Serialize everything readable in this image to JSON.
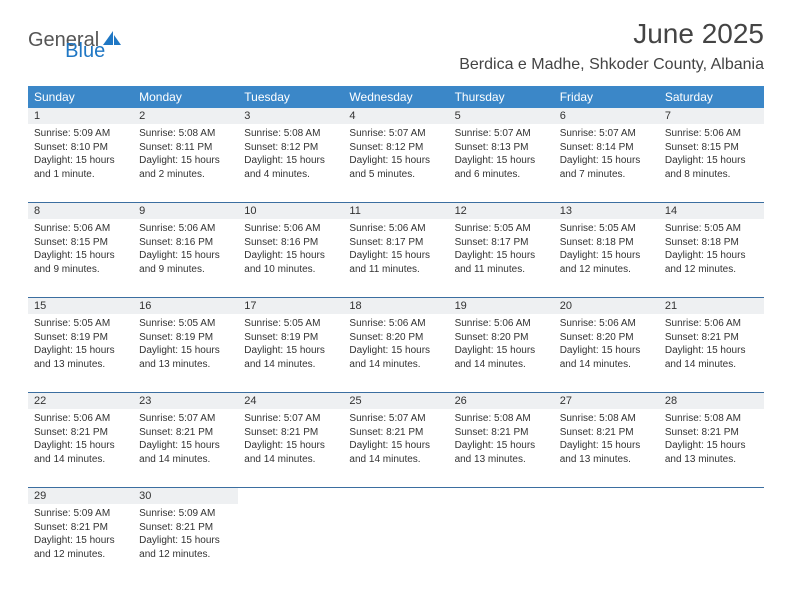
{
  "logo": {
    "general": "General",
    "blue": "Blue"
  },
  "title": "June 2025",
  "location": "Berdica e Madhe, Shkoder County, Albania",
  "colors": {
    "header_bg": "#3b87c8",
    "header_text": "#ffffff",
    "daynum_bg": "#eef0f2",
    "week_border": "#3b6ea0",
    "logo_blue": "#1f77c4",
    "text": "#333333"
  },
  "day_headers": [
    "Sunday",
    "Monday",
    "Tuesday",
    "Wednesday",
    "Thursday",
    "Friday",
    "Saturday"
  ],
  "weeks": [
    [
      {
        "n": "1",
        "sunrise": "Sunrise: 5:09 AM",
        "sunset": "Sunset: 8:10 PM",
        "dl1": "Daylight: 15 hours",
        "dl2": "and 1 minute."
      },
      {
        "n": "2",
        "sunrise": "Sunrise: 5:08 AM",
        "sunset": "Sunset: 8:11 PM",
        "dl1": "Daylight: 15 hours",
        "dl2": "and 2 minutes."
      },
      {
        "n": "3",
        "sunrise": "Sunrise: 5:08 AM",
        "sunset": "Sunset: 8:12 PM",
        "dl1": "Daylight: 15 hours",
        "dl2": "and 4 minutes."
      },
      {
        "n": "4",
        "sunrise": "Sunrise: 5:07 AM",
        "sunset": "Sunset: 8:12 PM",
        "dl1": "Daylight: 15 hours",
        "dl2": "and 5 minutes."
      },
      {
        "n": "5",
        "sunrise": "Sunrise: 5:07 AM",
        "sunset": "Sunset: 8:13 PM",
        "dl1": "Daylight: 15 hours",
        "dl2": "and 6 minutes."
      },
      {
        "n": "6",
        "sunrise": "Sunrise: 5:07 AM",
        "sunset": "Sunset: 8:14 PM",
        "dl1": "Daylight: 15 hours",
        "dl2": "and 7 minutes."
      },
      {
        "n": "7",
        "sunrise": "Sunrise: 5:06 AM",
        "sunset": "Sunset: 8:15 PM",
        "dl1": "Daylight: 15 hours",
        "dl2": "and 8 minutes."
      }
    ],
    [
      {
        "n": "8",
        "sunrise": "Sunrise: 5:06 AM",
        "sunset": "Sunset: 8:15 PM",
        "dl1": "Daylight: 15 hours",
        "dl2": "and 9 minutes."
      },
      {
        "n": "9",
        "sunrise": "Sunrise: 5:06 AM",
        "sunset": "Sunset: 8:16 PM",
        "dl1": "Daylight: 15 hours",
        "dl2": "and 9 minutes."
      },
      {
        "n": "10",
        "sunrise": "Sunrise: 5:06 AM",
        "sunset": "Sunset: 8:16 PM",
        "dl1": "Daylight: 15 hours",
        "dl2": "and 10 minutes."
      },
      {
        "n": "11",
        "sunrise": "Sunrise: 5:06 AM",
        "sunset": "Sunset: 8:17 PM",
        "dl1": "Daylight: 15 hours",
        "dl2": "and 11 minutes."
      },
      {
        "n": "12",
        "sunrise": "Sunrise: 5:05 AM",
        "sunset": "Sunset: 8:17 PM",
        "dl1": "Daylight: 15 hours",
        "dl2": "and 11 minutes."
      },
      {
        "n": "13",
        "sunrise": "Sunrise: 5:05 AM",
        "sunset": "Sunset: 8:18 PM",
        "dl1": "Daylight: 15 hours",
        "dl2": "and 12 minutes."
      },
      {
        "n": "14",
        "sunrise": "Sunrise: 5:05 AM",
        "sunset": "Sunset: 8:18 PM",
        "dl1": "Daylight: 15 hours",
        "dl2": "and 12 minutes."
      }
    ],
    [
      {
        "n": "15",
        "sunrise": "Sunrise: 5:05 AM",
        "sunset": "Sunset: 8:19 PM",
        "dl1": "Daylight: 15 hours",
        "dl2": "and 13 minutes."
      },
      {
        "n": "16",
        "sunrise": "Sunrise: 5:05 AM",
        "sunset": "Sunset: 8:19 PM",
        "dl1": "Daylight: 15 hours",
        "dl2": "and 13 minutes."
      },
      {
        "n": "17",
        "sunrise": "Sunrise: 5:05 AM",
        "sunset": "Sunset: 8:19 PM",
        "dl1": "Daylight: 15 hours",
        "dl2": "and 14 minutes."
      },
      {
        "n": "18",
        "sunrise": "Sunrise: 5:06 AM",
        "sunset": "Sunset: 8:20 PM",
        "dl1": "Daylight: 15 hours",
        "dl2": "and 14 minutes."
      },
      {
        "n": "19",
        "sunrise": "Sunrise: 5:06 AM",
        "sunset": "Sunset: 8:20 PM",
        "dl1": "Daylight: 15 hours",
        "dl2": "and 14 minutes."
      },
      {
        "n": "20",
        "sunrise": "Sunrise: 5:06 AM",
        "sunset": "Sunset: 8:20 PM",
        "dl1": "Daylight: 15 hours",
        "dl2": "and 14 minutes."
      },
      {
        "n": "21",
        "sunrise": "Sunrise: 5:06 AM",
        "sunset": "Sunset: 8:21 PM",
        "dl1": "Daylight: 15 hours",
        "dl2": "and 14 minutes."
      }
    ],
    [
      {
        "n": "22",
        "sunrise": "Sunrise: 5:06 AM",
        "sunset": "Sunset: 8:21 PM",
        "dl1": "Daylight: 15 hours",
        "dl2": "and 14 minutes."
      },
      {
        "n": "23",
        "sunrise": "Sunrise: 5:07 AM",
        "sunset": "Sunset: 8:21 PM",
        "dl1": "Daylight: 15 hours",
        "dl2": "and 14 minutes."
      },
      {
        "n": "24",
        "sunrise": "Sunrise: 5:07 AM",
        "sunset": "Sunset: 8:21 PM",
        "dl1": "Daylight: 15 hours",
        "dl2": "and 14 minutes."
      },
      {
        "n": "25",
        "sunrise": "Sunrise: 5:07 AM",
        "sunset": "Sunset: 8:21 PM",
        "dl1": "Daylight: 15 hours",
        "dl2": "and 14 minutes."
      },
      {
        "n": "26",
        "sunrise": "Sunrise: 5:08 AM",
        "sunset": "Sunset: 8:21 PM",
        "dl1": "Daylight: 15 hours",
        "dl2": "and 13 minutes."
      },
      {
        "n": "27",
        "sunrise": "Sunrise: 5:08 AM",
        "sunset": "Sunset: 8:21 PM",
        "dl1": "Daylight: 15 hours",
        "dl2": "and 13 minutes."
      },
      {
        "n": "28",
        "sunrise": "Sunrise: 5:08 AM",
        "sunset": "Sunset: 8:21 PM",
        "dl1": "Daylight: 15 hours",
        "dl2": "and 13 minutes."
      }
    ],
    [
      {
        "n": "29",
        "sunrise": "Sunrise: 5:09 AM",
        "sunset": "Sunset: 8:21 PM",
        "dl1": "Daylight: 15 hours",
        "dl2": "and 12 minutes."
      },
      {
        "n": "30",
        "sunrise": "Sunrise: 5:09 AM",
        "sunset": "Sunset: 8:21 PM",
        "dl1": "Daylight: 15 hours",
        "dl2": "and 12 minutes."
      },
      null,
      null,
      null,
      null,
      null
    ]
  ]
}
